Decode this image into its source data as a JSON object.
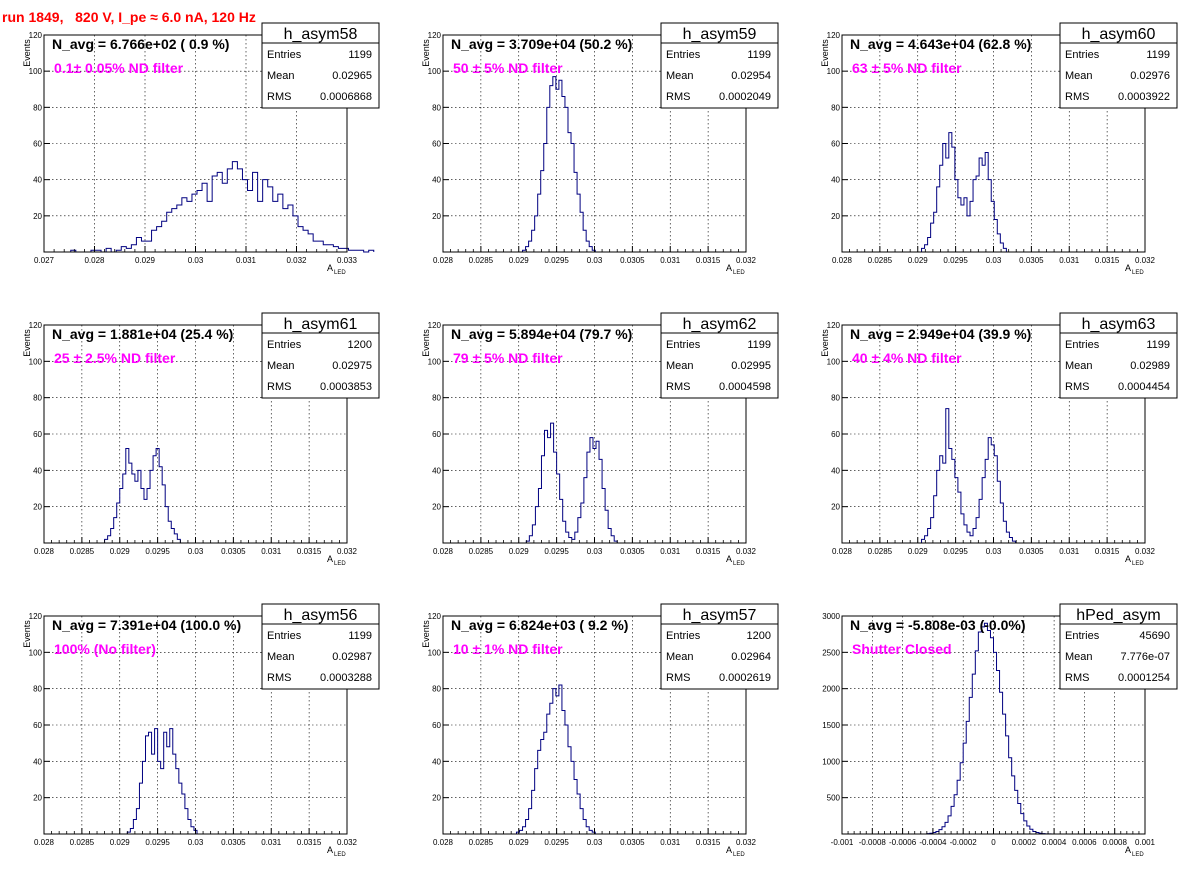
{
  "page_title": "run 1849,   820 V, I_pe ≈ 6.0 nA, 120 Hz",
  "colors": {
    "histogram": "#000080",
    "title": "#ff0000",
    "annotation": "#ff00ff",
    "grid": "#000000"
  },
  "chart_data": [
    {
      "type": "histogram",
      "name": "h_asym58",
      "n_avg": "N_avg = 6.766e+02 ( 0.9 %)",
      "filter": "0.1± 0.05% ND filter",
      "stats": [
        [
          "Entries",
          "1199"
        ],
        [
          "Mean",
          "0.02965"
        ],
        [
          "RMS",
          "0.0006868"
        ]
      ],
      "xlabel": "A",
      "xlabel_sub": "LED",
      "ylabel": "Events",
      "xlim": [
        0.027,
        0.033
      ],
      "ylim": [
        0,
        120
      ],
      "xticks": [
        0.027,
        0.028,
        0.029,
        0.03,
        0.031,
        0.032,
        0.033
      ],
      "xtick_labels": [
        "0.027",
        "0.028",
        "0.029",
        "0.03",
        "0.031",
        "0.032",
        "0.033"
      ],
      "yticks": [
        20,
        40,
        60,
        80,
        100,
        120
      ],
      "ytick_labels": [
        "20",
        "40",
        "60",
        "80",
        "100",
        "120"
      ],
      "grid": true,
      "bins": {
        "start": 0.02753,
        "width": 0.0001,
        "counts": [
          1,
          0,
          0,
          0,
          1,
          1,
          0,
          2,
          0,
          1,
          3,
          2,
          4,
          8,
          6,
          6,
          12,
          14,
          17,
          22,
          24,
          26,
          30,
          28,
          32,
          34,
          38,
          28,
          42,
          44,
          38,
          46,
          50,
          46,
          40,
          34,
          44,
          28,
          40,
          36,
          28,
          32,
          24,
          26,
          20,
          14,
          12,
          10,
          6,
          6,
          4,
          4,
          3,
          2,
          2,
          1,
          1,
          1,
          0,
          1
        ]
      }
    },
    {
      "type": "histogram",
      "name": "h_asym59",
      "n_avg": "N_avg = 3.709e+04 (50.2 %)",
      "filter": "50 ± 5% ND filter",
      "stats": [
        [
          "Entries",
          "1199"
        ],
        [
          "Mean",
          "0.02954"
        ],
        [
          "RMS",
          "0.0002049"
        ]
      ],
      "xlabel": "A",
      "xlabel_sub": "LED",
      "ylabel": "Events",
      "xlim": [
        0.028,
        0.032
      ],
      "ylim": [
        0,
        120
      ],
      "xticks": [
        0.028,
        0.0285,
        0.029,
        0.0295,
        0.03,
        0.0305,
        0.031,
        0.0315,
        0.032
      ],
      "xtick_labels": [
        "0.028",
        "0.0285",
        "0.029",
        "0.0295",
        "0.03",
        "0.0305",
        "0.031",
        "0.0315",
        "0.032"
      ],
      "yticks": [
        20,
        40,
        60,
        80,
        100,
        120
      ],
      "ytick_labels": [
        "20",
        "40",
        "60",
        "80",
        "100",
        "120"
      ],
      "grid": true,
      "bins": {
        "start": 0.02905,
        "width": 4e-05,
        "counts": [
          1,
          3,
          6,
          12,
          20,
          32,
          45,
          60,
          80,
          92,
          97,
          90,
          95,
          86,
          80,
          66,
          60,
          44,
          32,
          22,
          12,
          6,
          3,
          1
        ]
      }
    },
    {
      "type": "histogram",
      "name": "h_asym60",
      "n_avg": "N_avg = 4.643e+04 (62.8 %)",
      "filter": "63 ± 5% ND filter",
      "stats": [
        [
          "Entries",
          "1199"
        ],
        [
          "Mean",
          "0.02976"
        ],
        [
          "RMS",
          "0.0003922"
        ]
      ],
      "xlabel": "A",
      "xlabel_sub": "LED",
      "ylabel": "Events",
      "xlim": [
        0.028,
        0.032
      ],
      "ylim": [
        0,
        120
      ],
      "xticks": [
        0.028,
        0.0285,
        0.029,
        0.0295,
        0.03,
        0.0305,
        0.031,
        0.0315,
        0.032
      ],
      "xtick_labels": [
        "0.028",
        "0.0285",
        "0.029",
        "0.0295",
        "0.03",
        "0.0305",
        "0.031",
        "0.0315",
        "0.032"
      ],
      "yticks": [
        20,
        40,
        60,
        80,
        100,
        120
      ],
      "ytick_labels": [
        "20",
        "40",
        "60",
        "80",
        "100",
        "120"
      ],
      "grid": true,
      "bins": {
        "start": 0.02905,
        "width": 4e-05,
        "counts": [
          2,
          4,
          8,
          16,
          22,
          36,
          48,
          60,
          52,
          66,
          58,
          40,
          30,
          26,
          30,
          20,
          28,
          40,
          42,
          52,
          48,
          55,
          40,
          28,
          18,
          10,
          5,
          2
        ]
      }
    },
    {
      "type": "histogram",
      "name": "h_asym61",
      "n_avg": "N_avg = 1.881e+04 (25.4 %)",
      "filter": "25 ± 2.5% ND filter",
      "stats": [
        [
          "Entries",
          "1200"
        ],
        [
          "Mean",
          "0.02975"
        ],
        [
          "RMS",
          "0.0003853"
        ]
      ],
      "xlabel": "A",
      "xlabel_sub": "LED",
      "ylabel": "Events",
      "xlim": [
        0.028,
        0.032
      ],
      "ylim": [
        0,
        120
      ],
      "xticks": [
        0.028,
        0.0285,
        0.029,
        0.0295,
        0.03,
        0.0305,
        0.031,
        0.0315,
        0.032
      ],
      "xtick_labels": [
        "0.028",
        "0.0285",
        "0.029",
        "0.0295",
        "0.03",
        "0.0305",
        "0.031",
        "0.0315",
        "0.032"
      ],
      "yticks": [
        20,
        40,
        60,
        80,
        100,
        120
      ],
      "ytick_labels": [
        "20",
        "40",
        "60",
        "80",
        "100",
        "120"
      ],
      "grid": true,
      "bins": {
        "start": 0.0288,
        "width": 4e-05,
        "counts": [
          2,
          4,
          8,
          14,
          22,
          30,
          38,
          52,
          44,
          38,
          34,
          40,
          30,
          24,
          30,
          40,
          48,
          52,
          42,
          32,
          20,
          12,
          8,
          5,
          2
        ]
      }
    },
    {
      "type": "histogram",
      "name": "h_asym62",
      "n_avg": "N_avg = 5.894e+04 (79.7 %)",
      "filter": "79 ± 5% ND filter",
      "stats": [
        [
          "Entries",
          "1199"
        ],
        [
          "Mean",
          "0.02995"
        ],
        [
          "RMS",
          "0.0004598"
        ]
      ],
      "xlabel": "A",
      "xlabel_sub": "LED",
      "ylabel": "Events",
      "xlim": [
        0.028,
        0.032
      ],
      "ylim": [
        0,
        120
      ],
      "xticks": [
        0.028,
        0.0285,
        0.029,
        0.0295,
        0.03,
        0.0305,
        0.031,
        0.0315,
        0.032
      ],
      "xtick_labels": [
        "0.028",
        "0.0285",
        "0.029",
        "0.0295",
        "0.03",
        "0.0305",
        "0.031",
        "0.0315",
        "0.032"
      ],
      "yticks": [
        20,
        40,
        60,
        80,
        100,
        120
      ],
      "ytick_labels": [
        "20",
        "40",
        "60",
        "80",
        "100",
        "120"
      ],
      "grid": true,
      "bins": {
        "start": 0.0291,
        "width": 4e-05,
        "counts": [
          1,
          4,
          10,
          20,
          30,
          48,
          62,
          58,
          66,
          50,
          38,
          24,
          12,
          6,
          3,
          2,
          6,
          14,
          22,
          36,
          50,
          58,
          52,
          56,
          46,
          30,
          18,
          8,
          4,
          1
        ]
      }
    },
    {
      "type": "histogram",
      "name": "h_asym63",
      "n_avg": "N_avg = 2.949e+04 (39.9 %)",
      "filter": "40 ± 4% ND filter",
      "stats": [
        [
          "Entries",
          "1199"
        ],
        [
          "Mean",
          "0.02989"
        ],
        [
          "RMS",
          "0.0004454"
        ]
      ],
      "xlabel": "A",
      "xlabel_sub": "LED",
      "ylabel": "Events",
      "xlim": [
        0.028,
        0.032
      ],
      "ylim": [
        0,
        120
      ],
      "xticks": [
        0.028,
        0.0285,
        0.029,
        0.0295,
        0.03,
        0.0305,
        0.031,
        0.0315,
        0.032
      ],
      "xtick_labels": [
        "0.028",
        "0.0285",
        "0.029",
        "0.0295",
        "0.03",
        "0.0305",
        "0.031",
        "0.0315",
        "0.032"
      ],
      "yticks": [
        20,
        40,
        60,
        80,
        100,
        120
      ],
      "ytick_labels": [
        "20",
        "40",
        "60",
        "80",
        "100",
        "120"
      ],
      "grid": true,
      "bins": {
        "start": 0.02905,
        "width": 4e-05,
        "counts": [
          2,
          4,
          8,
          14,
          26,
          40,
          48,
          44,
          74,
          52,
          46,
          36,
          28,
          16,
          10,
          6,
          4,
          8,
          14,
          24,
          36,
          46,
          58,
          54,
          48,
          34,
          22,
          12,
          6,
          3,
          1
        ]
      }
    },
    {
      "type": "histogram",
      "name": "h_asym56",
      "n_avg": "N_avg = 7.391e+04 (100.0 %)",
      "filter": "100% (No filter)",
      "stats": [
        [
          "Entries",
          "1199"
        ],
        [
          "Mean",
          "0.02987"
        ],
        [
          "RMS",
          "0.0003288"
        ]
      ],
      "xlabel": "A",
      "xlabel_sub": "LED",
      "ylabel": "Events",
      "xlim": [
        0.028,
        0.032
      ],
      "ylim": [
        0,
        120
      ],
      "xticks": [
        0.028,
        0.0285,
        0.029,
        0.0295,
        0.03,
        0.0305,
        0.031,
        0.0315,
        0.032
      ],
      "xtick_labels": [
        "0.028",
        "0.0285",
        "0.029",
        "0.0295",
        "0.03",
        "0.0305",
        "0.031",
        "0.0315",
        "0.032"
      ],
      "yticks": [
        20,
        40,
        60,
        80,
        100,
        120
      ],
      "ytick_labels": [
        "20",
        "40",
        "60",
        "80",
        "100",
        "120"
      ],
      "grid": true,
      "bins": {
        "start": 0.0291,
        "width": 4e-05,
        "counts": [
          1,
          3,
          8,
          14,
          28,
          40,
          54,
          56,
          44,
          58,
          40,
          36,
          56,
          48,
          58,
          44,
          36,
          28,
          22,
          14,
          8,
          4,
          2
        ]
      }
    },
    {
      "type": "histogram",
      "name": "h_asym57",
      "n_avg": "N_avg = 6.824e+03 ( 9.2 %)",
      "filter": "10 ± 1% ND filter",
      "stats": [
        [
          "Entries",
          "1200"
        ],
        [
          "Mean",
          "0.02964"
        ],
        [
          "RMS",
          "0.0002619"
        ]
      ],
      "xlabel": "A",
      "xlabel_sub": "LED",
      "ylabel": "Events",
      "xlim": [
        0.028,
        0.032
      ],
      "ylim": [
        0,
        120
      ],
      "xticks": [
        0.028,
        0.0285,
        0.029,
        0.0295,
        0.03,
        0.0305,
        0.031,
        0.0315,
        0.032
      ],
      "xtick_labels": [
        "0.028",
        "0.0285",
        "0.029",
        "0.0295",
        "0.03",
        "0.0305",
        "0.031",
        "0.0315",
        "0.032"
      ],
      "yticks": [
        20,
        40,
        60,
        80,
        100,
        120
      ],
      "ytick_labels": [
        "20",
        "40",
        "60",
        "80",
        "100",
        "120"
      ],
      "grid": true,
      "bins": {
        "start": 0.02897,
        "width": 4e-05,
        "counts": [
          1,
          2,
          4,
          8,
          14,
          24,
          36,
          46,
          52,
          56,
          66,
          72,
          80,
          76,
          82,
          68,
          60,
          48,
          40,
          30,
          22,
          14,
          8,
          4,
          2,
          1
        ]
      }
    },
    {
      "type": "histogram",
      "name": "hPed_asym",
      "n_avg": "N_avg = -5.808e-03 (-0.0%)",
      "filter": "Shutter Closed",
      "stats": [
        [
          "Entries",
          "45690"
        ],
        [
          "Mean",
          "7.776e-07"
        ],
        [
          "RMS",
          "0.0001254"
        ]
      ],
      "xlabel": "A",
      "xlabel_sub": "LED",
      "ylabel": "",
      "xlim": [
        -0.001,
        0.001
      ],
      "ylim": [
        0,
        3000
      ],
      "xticks": [
        -0.001,
        -0.0008,
        -0.0006,
        -0.0004,
        -0.0002,
        0,
        0.0002,
        0.0004,
        0.0006,
        0.0008,
        0.001
      ],
      "xtick_labels": [
        "-0.001",
        "-0.0008",
        "-0.0006",
        "-0.0004",
        "-0.0002",
        "0",
        "0.0002",
        "0.0004",
        "0.0006",
        "0.0008",
        "0.001"
      ],
      "yticks": [
        500,
        1000,
        1500,
        2000,
        2500,
        3000
      ],
      "ytick_labels": [
        "500",
        "1000",
        "1500",
        "2000",
        "2500",
        "3000"
      ],
      "grid": true,
      "bins": {
        "start": -0.00044,
        "width": 2e-05,
        "counts": [
          5,
          10,
          20,
          35,
          60,
          100,
          160,
          250,
          380,
          540,
          740,
          980,
          1250,
          1550,
          1880,
          2200,
          2520,
          2780,
          2850,
          2900,
          2800,
          2700,
          2500,
          2250,
          1950,
          1650,
          1350,
          1050,
          800,
          600,
          420,
          280,
          180,
          110,
          65,
          35,
          20,
          10,
          5,
          2,
          1
        ]
      }
    }
  ]
}
